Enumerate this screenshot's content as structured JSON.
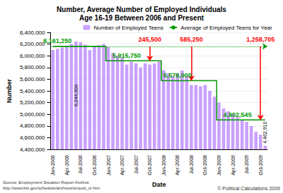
{
  "chart_data": {
    "type": "bar",
    "title": "Number, Average Number of Employed Individuals\nAge 16-19 Between 2006 and Present",
    "x_label": "Date",
    "y_label": "Number",
    "categories": [
      "Jan-2006",
      null,
      null,
      "Apr-2006",
      null,
      null,
      "Jul-2006",
      null,
      null,
      "Oct-2006",
      null,
      null,
      "Jan-2007",
      null,
      null,
      "Apr-2007",
      null,
      null,
      "Jul-2007",
      null,
      null,
      "Oct-2007",
      null,
      null,
      "Jan-2008",
      null,
      null,
      "Apr-2008",
      null,
      null,
      "Jul-2008",
      null,
      null,
      "Oct-2008",
      null,
      null,
      "Jan-2009",
      null,
      null,
      "Apr-2009",
      null,
      null,
      "Jul-2009",
      null,
      null,
      "Oct-2009",
      null
    ],
    "series": [
      {
        "name": "Number of Employed Teens",
        "type": "bar",
        "color": "#c9a0ff",
        "values": [
          6100000,
          6120000,
          6140000,
          6150000,
          6200000,
          6244000,
          6230000,
          6190000,
          6100000,
          6170000,
          6180000,
          6200000,
          6150000,
          6050000,
          6000000,
          5970000,
          5850000,
          5900000,
          5870000,
          5800000,
          5870000,
          5850000,
          5870000,
          5900000,
          5750000,
          5700000,
          5650000,
          5700000,
          5750000,
          5650000,
          5500000,
          5500000,
          5480000,
          5500000,
          5400000,
          5300000,
          5200000,
          5100000,
          5050000,
          5000000,
          4950000,
          4900000,
          4870000,
          4800000,
          4700000,
          4650000,
          4462910
        ],
        "value_labels": [
          null,
          null,
          null,
          null,
          null,
          "6,244,000",
          null,
          null,
          null,
          null,
          null,
          null,
          null,
          null,
          null,
          null,
          null,
          null,
          null,
          null,
          null,
          null,
          null,
          null,
          null,
          null,
          null,
          null,
          null,
          null,
          null,
          null,
          null,
          null,
          null,
          null,
          null,
          null,
          null,
          null,
          null,
          null,
          null,
          null,
          null,
          null,
          "4,462,910"
        ]
      },
      {
        "name": "Average of Employed Teens for Year",
        "type": "line",
        "color": "#009900",
        "line_style": "solid",
        "values": [
          6161250,
          6161250,
          6161250,
          6161250,
          6161250,
          6161250,
          6161250,
          6161250,
          6161250,
          6161250,
          6161250,
          6161250,
          5915750,
          5915750,
          5915750,
          5915750,
          5915750,
          5915750,
          5915750,
          5915750,
          5915750,
          5915750,
          5915750,
          5915750,
          5576000,
          5576000,
          5576000,
          5576000,
          5576000,
          5576000,
          5576000,
          5576000,
          5576000,
          5576000,
          5576000,
          5576000,
          4902545,
          4902545,
          4902545,
          4902545,
          4902545,
          4902545,
          4902545,
          4902545,
          4902545,
          4902545,
          4902545
        ]
      }
    ],
    "data_labels": true,
    "ylim": [
      4400000,
      6400000
    ],
    "yticks": [
      {
        "value": 4400000,
        "label": "4,400,000"
      },
      {
        "value": 4600000,
        "label": "4,600,000"
      },
      {
        "value": 4800000,
        "label": "4,800,000"
      },
      {
        "value": 5000000,
        "label": "5,000,000"
      },
      {
        "value": 5200000,
        "label": "5,200,000"
      },
      {
        "value": 5400000,
        "label": "5,400,000"
      },
      {
        "value": 5600000,
        "label": "5,600,000"
      },
      {
        "value": 5800000,
        "label": "5,800,000"
      },
      {
        "value": 6000000,
        "label": "6,000,000"
      },
      {
        "value": 6200000,
        "label": "6,200,000"
      },
      {
        "value": 6400000,
        "label": "6,400,000"
      }
    ],
    "grid": true,
    "legend": "top",
    "reference_value": 6161250,
    "average_labels": [
      {
        "text": "6,161,250",
        "x_index": 1,
        "value": 6161250
      },
      {
        "text": "5,915,750",
        "x_index": 16,
        "value": 5915750
      },
      {
        "text": "5,576,000",
        "x_index": 27,
        "value": 5576000
      },
      {
        "text": "4,902,545",
        "x_index": 40,
        "value": 4902545
      }
    ],
    "drops": [
      {
        "text": "245,500",
        "x_index": 21,
        "from": 6161250,
        "to": 5915750
      },
      {
        "text": "585,250",
        "x_index": 30,
        "from": 6161250,
        "to": 5576000
      },
      {
        "text": "1,258,705",
        "x_index": 45,
        "from": 6161250,
        "to": 4902545
      }
    ],
    "source": "Source: Employment Situation Report Archive",
    "source_url": "http://www.bls.gov/schedule/archives/empsit_nr.htm",
    "credit": "© Political Calculations 2009"
  }
}
